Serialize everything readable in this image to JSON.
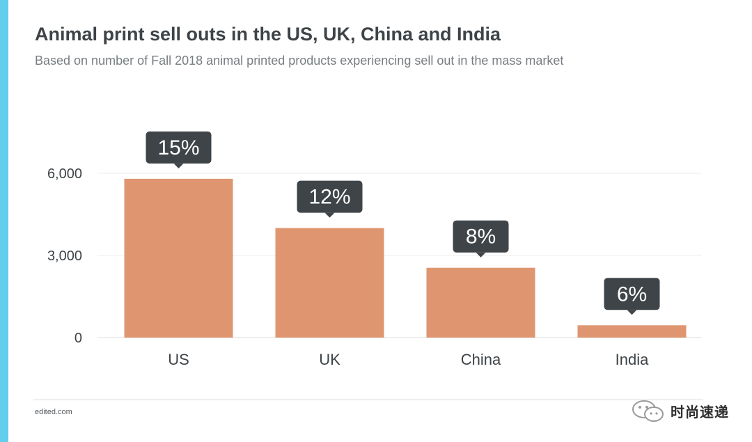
{
  "header": {
    "title": "Animal print sell outs in the US, UK, China and India",
    "subtitle": "Based on number of Fall 2018 animal printed products experiencing sell out in the mass market"
  },
  "footer": {
    "source": "edited.com",
    "watermark": "时尚速递"
  },
  "colors": {
    "accent": "#62cdec",
    "bar": "#df9670",
    "label_bg": "#3f4448",
    "grid": "#ececec",
    "text": "#3d4347"
  },
  "chart_data": {
    "type": "bar",
    "title": "Animal print sell outs in the US, UK, China and India",
    "subtitle": "Based on number of Fall 2018 animal printed products experiencing sell out in the mass market",
    "categories": [
      "US",
      "UK",
      "China",
      "India"
    ],
    "values": [
      5800,
      4000,
      2550,
      450
    ],
    "data_labels": [
      "15%",
      "12%",
      "8%",
      "6%"
    ],
    "yticks": [
      0,
      3000,
      6000
    ],
    "ytick_labels": [
      "0",
      "3,000",
      "6,000"
    ],
    "ylim": [
      0,
      6600
    ],
    "xlabel": "",
    "ylabel": "",
    "grid": true
  }
}
